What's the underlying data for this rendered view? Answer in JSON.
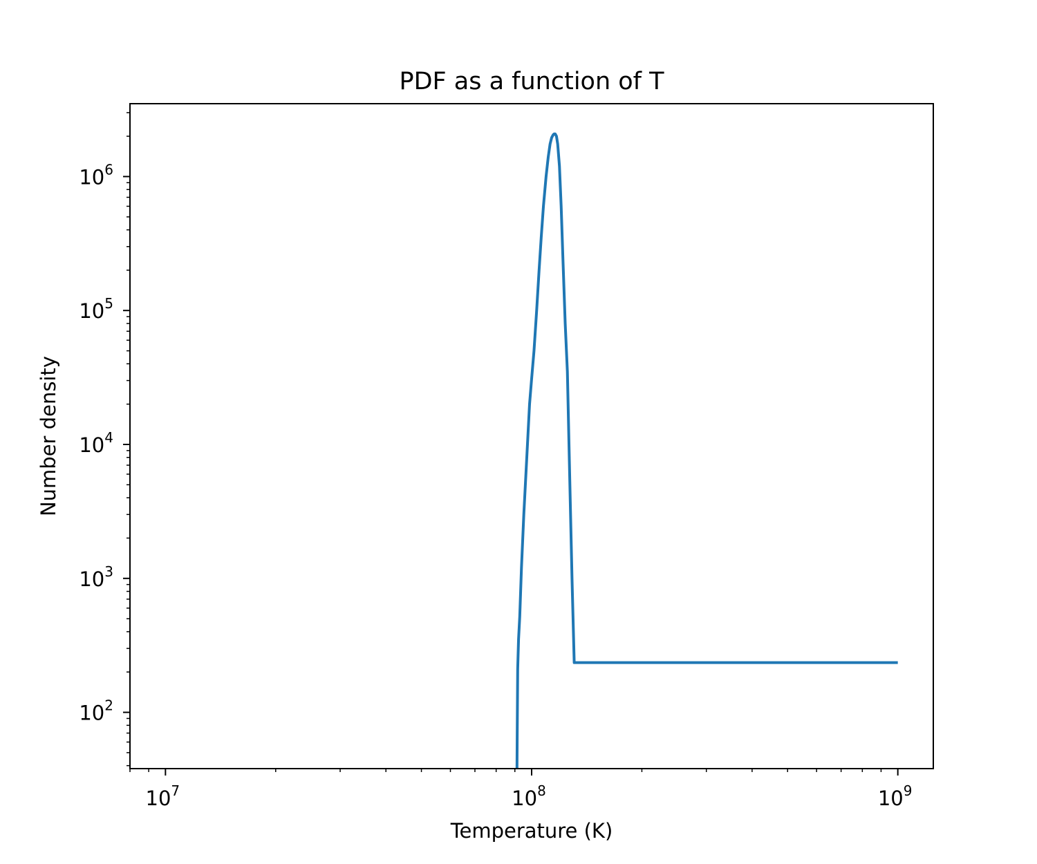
{
  "chart_data": {
    "type": "line",
    "title": "PDF as a function of T",
    "xlabel": "Temperature (K)",
    "ylabel": "Number density",
    "xscale": "log",
    "yscale": "log",
    "xlim": [
      8000000,
      1250000000
    ],
    "ylim": [
      38,
      3500000
    ],
    "grid": false,
    "legend": "none",
    "line_color": "#1f77b4",
    "x_ticks": [
      {
        "value": 10000000,
        "base": "10",
        "exp": "7"
      },
      {
        "value": 100000000,
        "base": "10",
        "exp": "8"
      },
      {
        "value": 1000000000,
        "base": "10",
        "exp": "9"
      }
    ],
    "y_ticks": [
      {
        "value": 100,
        "base": "10",
        "exp": "2"
      },
      {
        "value": 1000,
        "base": "10",
        "exp": "3"
      },
      {
        "value": 10000,
        "base": "10",
        "exp": "4"
      },
      {
        "value": 100000,
        "base": "10",
        "exp": "5"
      },
      {
        "value": 1000000,
        "base": "10",
        "exp": "6"
      }
    ],
    "series": [
      {
        "x": [
          91200000,
          91300000,
          91600000,
          92100000,
          92800000,
          93800000,
          95200000,
          97000000,
          98700000,
          99900000,
          101500000,
          103200000,
          104800000,
          106200000,
          107700000,
          109500000,
          111000000,
          112300000,
          113400000,
          114500000,
          115200000,
          116000000,
          116900000,
          117800000,
          119100000,
          120400000,
          121700000,
          123500000,
          125200000,
          127000000,
          128900000,
          130700000,
          200000000,
          400000000,
          700000000,
          1000000000
        ],
        "y": [
          38,
          60,
          210,
          350,
          520,
          1200,
          3000,
          8000,
          20000,
          30000,
          50000,
          100000,
          200000,
          350000,
          600000,
          1000000,
          1400000,
          1750000,
          1950000,
          2050000,
          2080000,
          2080000,
          2000000,
          1750000,
          1200000,
          600000,
          250000,
          80000,
          35000,
          6000,
          1000,
          235,
          235,
          235,
          235,
          235
        ]
      }
    ]
  }
}
